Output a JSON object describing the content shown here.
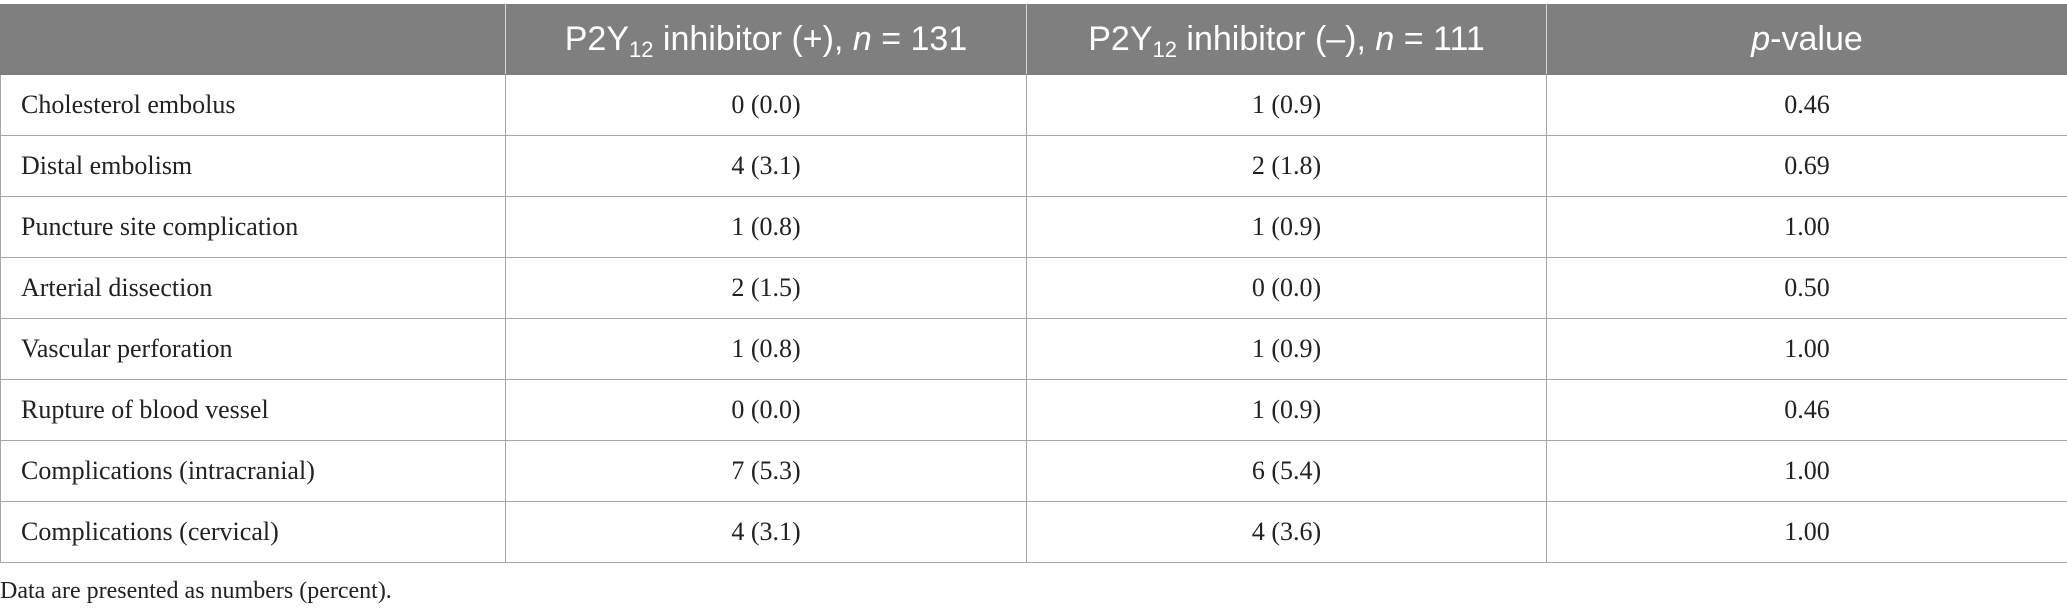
{
  "table": {
    "header": {
      "col0": "",
      "col1": {
        "prefix": "P2Y",
        "sub": "12",
        "mid": " inhibitor (+), ",
        "n": "n",
        "eq": " = 131"
      },
      "col2": {
        "prefix": "P2Y",
        "sub": "12",
        "mid": " inhibitor (–), ",
        "n": "n",
        "eq": " = 111"
      },
      "col3": {
        "p": "p",
        "rest": "-value"
      }
    },
    "rows": [
      {
        "label": "Cholesterol embolus",
        "pos": "0 (0.0)",
        "neg": "1 (0.9)",
        "p": "0.46"
      },
      {
        "label": "Distal embolism",
        "pos": "4 (3.1)",
        "neg": "2 (1.8)",
        "p": "0.69"
      },
      {
        "label": "Puncture site complication",
        "pos": "1 (0.8)",
        "neg": "1 (0.9)",
        "p": "1.00"
      },
      {
        "label": "Arterial dissection",
        "pos": "2 (1.5)",
        "neg": "0 (0.0)",
        "p": "0.50"
      },
      {
        "label": "Vascular perforation",
        "pos": "1 (0.8)",
        "neg": "1 (0.9)",
        "p": "1.00"
      },
      {
        "label": "Rupture of blood vessel",
        "pos": "0 (0.0)",
        "neg": "1 (0.9)",
        "p": "0.46"
      },
      {
        "label": "Complications (intracranial)",
        "pos": "7 (5.3)",
        "neg": "6 (5.4)",
        "p": "1.00"
      },
      {
        "label": "Complications (cervical)",
        "pos": "4 (3.1)",
        "neg": "4 (3.6)",
        "p": "1.00"
      }
    ]
  },
  "footnote": "Data are presented as numbers (percent).",
  "colors": {
    "header_bg": "#7f7f7f",
    "header_text": "#ffffff",
    "grid": "#a6a6a6"
  }
}
